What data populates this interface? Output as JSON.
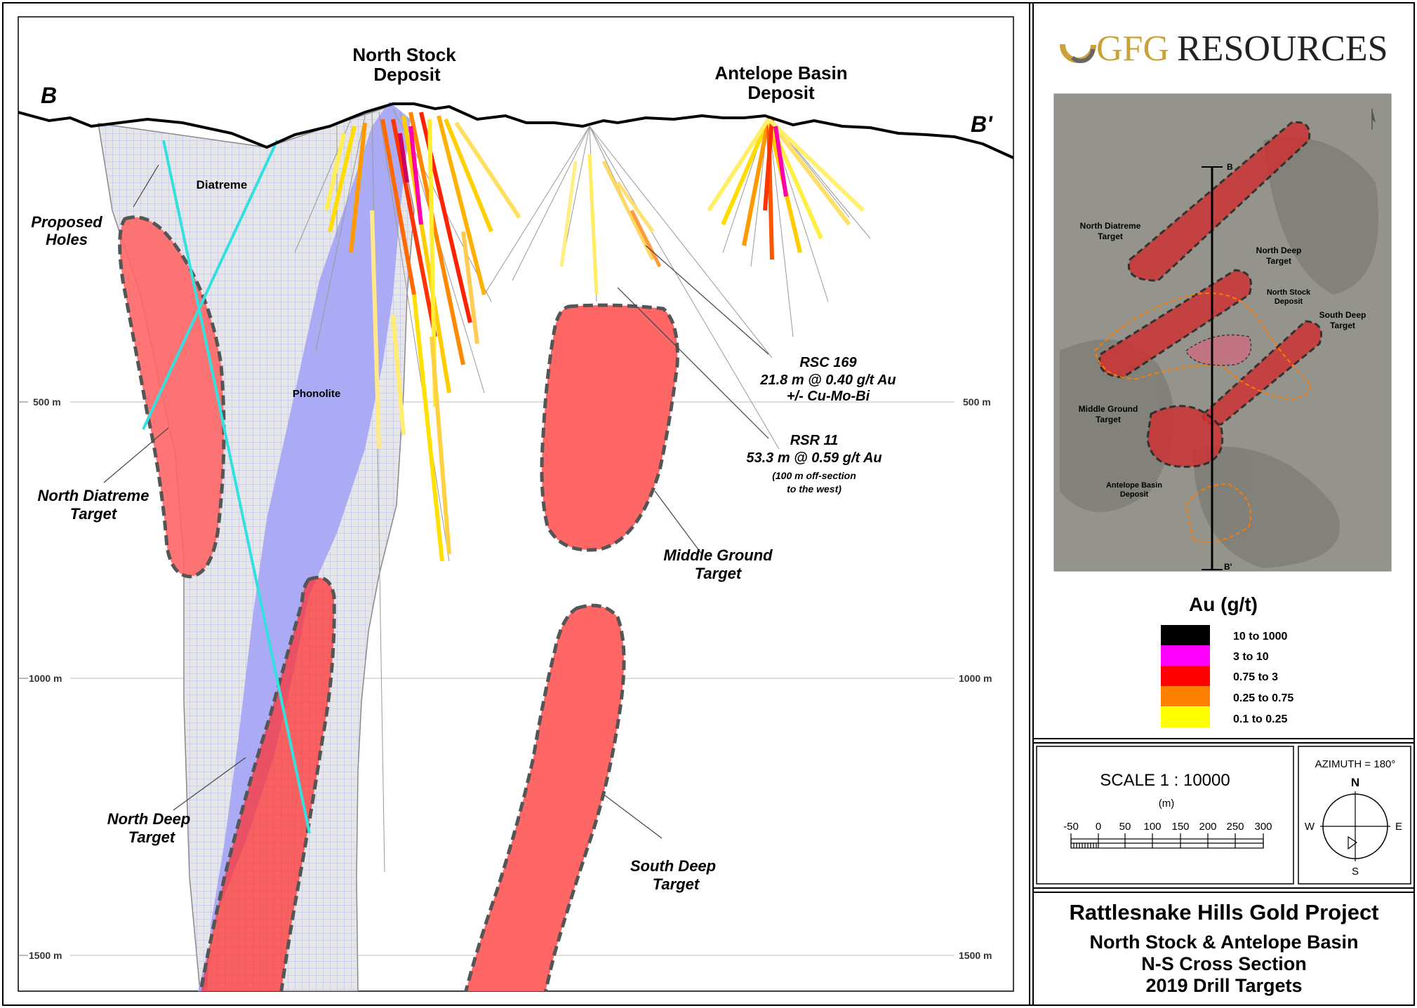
{
  "section": {
    "end_left": "B",
    "end_right": "B'",
    "depth_labels": [
      "500 m",
      "1000 m",
      "1500 m"
    ],
    "deposit_north_stock": [
      "North Stock",
      "Deposit"
    ],
    "deposit_antelope": [
      "Antelope Basin",
      "Deposit"
    ],
    "diatreme_label": "Diatreme",
    "phonolite_label": "Phonolite",
    "proposed_holes": [
      "Proposed",
      "Holes"
    ],
    "target_north_diatreme": [
      "North Diatreme",
      "Target"
    ],
    "target_north_deep": [
      "North Deep",
      "Target"
    ],
    "target_middle_ground": [
      "Middle Ground",
      "Target"
    ],
    "target_south_deep": [
      "South Deep",
      "Target"
    ],
    "rsc169": [
      "RSC 169",
      "21.8 m @ 0.40 g/t Au",
      "+/- Cu-Mo-Bi"
    ],
    "rsr11": [
      "RSR 11",
      "53.3 m @ 0.59 g/t Au"
    ],
    "rsr11_note": [
      "(100 m off-section",
      "to the west)"
    ]
  },
  "logo": {
    "gfg": "GFG",
    "resources": "RESOURCES"
  },
  "inset_map": {
    "label_b": "B",
    "label_b_prime": "B'",
    "north_diatreme": [
      "North Diatreme",
      "Target"
    ],
    "north_deep": [
      "North Deep",
      "Target"
    ],
    "north_stock": [
      "North Stock",
      "Deposit"
    ],
    "south_deep": [
      "South Deep",
      "Target"
    ],
    "middle_ground": [
      "Middle Ground",
      "Target"
    ],
    "antelope_basin": [
      "Antelope Basin",
      "Deposit"
    ]
  },
  "legend": {
    "title": "Au (g/t)",
    "items": [
      {
        "label": "10 to 1000",
        "color": "#000000"
      },
      {
        "label": "3 to 10",
        "color": "#ff00ff"
      },
      {
        "label": "0.75 to 3",
        "color": "#ff0000"
      },
      {
        "label": "0.25 to 0.75",
        "color": "#ff8000"
      },
      {
        "label": "0.1 to 0.25",
        "color": "#ffff00"
      }
    ]
  },
  "scale": {
    "label": "SCALE  1 : 10000",
    "unit": "(m)",
    "ticks": [
      "-50",
      "0",
      "50",
      "100",
      "150",
      "200",
      "250",
      "300"
    ]
  },
  "compass": {
    "azimuth": "AZIMUTH = 180°",
    "n": "N",
    "s": "S",
    "e": "E",
    "w": "W"
  },
  "title_block": {
    "line1": "Rattlesnake Hills Gold Project",
    "line2": "North Stock & Antelope Basin",
    "line3": "N-S Cross Section",
    "line4": "2019 Drill Targets"
  },
  "colors": {
    "target_fill": "#ff6666",
    "phonolite": "#a8a8f5",
    "diatreme": "#e6e6e6",
    "proposed_hole": "#33e0e0"
  }
}
